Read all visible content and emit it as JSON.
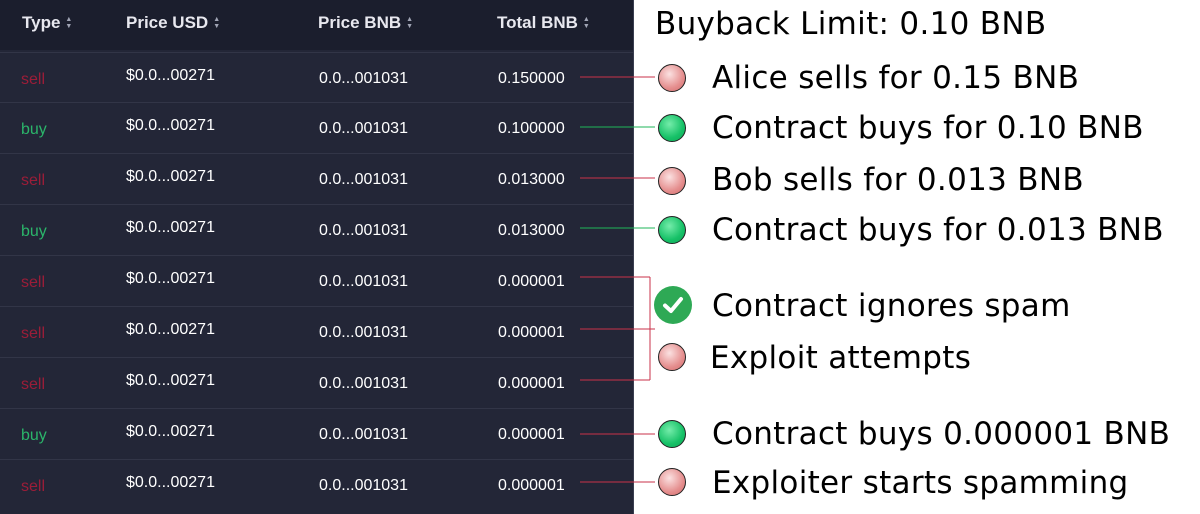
{
  "table": {
    "headers": [
      {
        "label": "Type"
      },
      {
        "label": "Price USD"
      },
      {
        "label": "Price BNB"
      },
      {
        "label": "Total BNB"
      }
    ],
    "rows": [
      {
        "type": "sell",
        "price_usd": "$0.0...00271",
        "price_bnb": "0.0...001031",
        "total_bnb": "0.150000"
      },
      {
        "type": "buy",
        "price_usd": "$0.0...00271",
        "price_bnb": "0.0...001031",
        "total_bnb": "0.100000"
      },
      {
        "type": "sell",
        "price_usd": "$0.0...00271",
        "price_bnb": "0.0...001031",
        "total_bnb": "0.013000"
      },
      {
        "type": "buy",
        "price_usd": "$0.0...00271",
        "price_bnb": "0.0...001031",
        "total_bnb": "0.013000"
      },
      {
        "type": "sell",
        "price_usd": "$0.0...00271",
        "price_bnb": "0.0...001031",
        "total_bnb": "0.000001"
      },
      {
        "type": "sell",
        "price_usd": "$0.0...00271",
        "price_bnb": "0.0...001031",
        "total_bnb": "0.000001"
      },
      {
        "type": "sell",
        "price_usd": "$0.0...00271",
        "price_bnb": "0.0...001031",
        "total_bnb": "0.000001"
      },
      {
        "type": "buy",
        "price_usd": "$0.0...00271",
        "price_bnb": "0.0...001031",
        "total_bnb": "0.000001"
      },
      {
        "type": "sell",
        "price_usd": "$0.0...00271",
        "price_bnb": "0.0...001031",
        "total_bnb": "0.000001"
      }
    ]
  },
  "annotations": {
    "title": "Buyback Limit: 0.10 BNB",
    "items": [
      {
        "text": "Alice sells for 0.15 BNB",
        "marker": "red-dot"
      },
      {
        "text": "Contract buys for 0.10 BNB",
        "marker": "green-dot"
      },
      {
        "text": "Bob sells for 0.013 BNB",
        "marker": "red-dot"
      },
      {
        "text": "Contract buys for 0.013 BNB",
        "marker": "green-dot"
      },
      {
        "text": "Contract ignores spam",
        "marker": "check-icon"
      },
      {
        "text": "Exploit attempts",
        "marker": "red-dot"
      },
      {
        "text": "Contract buys 0.000001 BNB",
        "marker": "green-dot"
      },
      {
        "text": "Exploiter starts spamming",
        "marker": "red-dot"
      }
    ]
  },
  "colors": {
    "sell": "#9b1d38",
    "buy": "#2bb56a",
    "panel_bg": "#232637",
    "header_bg": "#1b1e2d",
    "red_connector": "#c8324a",
    "green_connector": "#1fb55a"
  }
}
